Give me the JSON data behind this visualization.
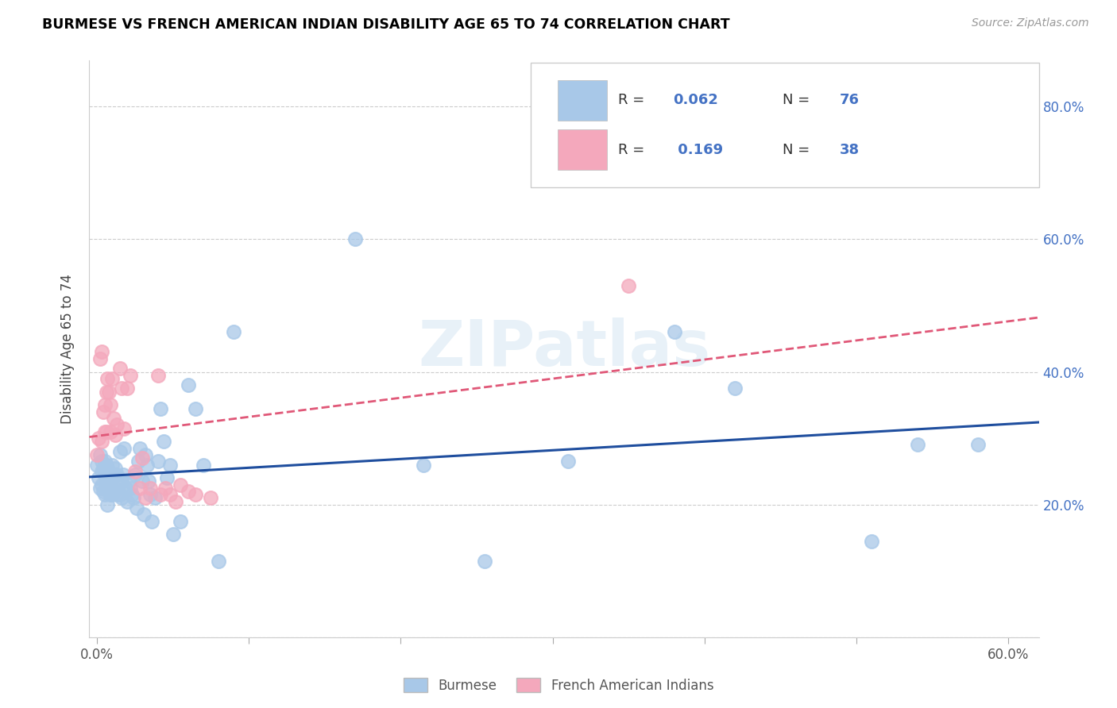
{
  "title": "BURMESE VS FRENCH AMERICAN INDIAN DISABILITY AGE 65 TO 74 CORRELATION CHART",
  "source": "Source: ZipAtlas.com",
  "ylabel": "Disability Age 65 to 74",
  "xlim": [
    -0.005,
    0.62
  ],
  "ylim": [
    0.0,
    0.87
  ],
  "xticks": [
    0.0,
    0.1,
    0.2,
    0.3,
    0.4,
    0.5,
    0.6
  ],
  "xticklabels": [
    "0.0%",
    "",
    "",
    "",
    "",
    "",
    "60.0%"
  ],
  "yticks": [
    0.0,
    0.2,
    0.4,
    0.6,
    0.8
  ],
  "yticklabels_right": [
    "",
    "20.0%",
    "40.0%",
    "60.0%",
    "80.0%"
  ],
  "burmese_R": 0.062,
  "burmese_N": 76,
  "french_R": 0.169,
  "french_N": 38,
  "burmese_color": "#a8c8e8",
  "french_color": "#f4a8bc",
  "burmese_line_color": "#1f4e9e",
  "french_line_color": "#e05878",
  "watermark": "ZIPatlas",
  "legend_labels": [
    "Burmese",
    "French American Indians"
  ],
  "burmese_x": [
    0.0,
    0.001,
    0.002,
    0.002,
    0.003,
    0.003,
    0.003,
    0.004,
    0.004,
    0.005,
    0.005,
    0.005,
    0.006,
    0.006,
    0.007,
    0.007,
    0.007,
    0.008,
    0.008,
    0.009,
    0.009,
    0.01,
    0.01,
    0.01,
    0.011,
    0.011,
    0.012,
    0.012,
    0.013,
    0.013,
    0.014,
    0.015,
    0.015,
    0.016,
    0.016,
    0.017,
    0.018,
    0.019,
    0.02,
    0.021,
    0.022,
    0.023,
    0.024,
    0.025,
    0.026,
    0.027,
    0.028,
    0.03,
    0.031,
    0.032,
    0.033,
    0.034,
    0.035,
    0.036,
    0.038,
    0.04,
    0.042,
    0.044,
    0.046,
    0.048,
    0.05,
    0.055,
    0.06,
    0.065,
    0.07,
    0.08,
    0.09,
    0.17,
    0.215,
    0.255,
    0.31,
    0.38,
    0.42,
    0.51,
    0.54,
    0.58
  ],
  "burmese_y": [
    0.26,
    0.24,
    0.275,
    0.225,
    0.25,
    0.265,
    0.23,
    0.255,
    0.22,
    0.265,
    0.245,
    0.215,
    0.26,
    0.235,
    0.255,
    0.225,
    0.2,
    0.25,
    0.22,
    0.245,
    0.215,
    0.26,
    0.24,
    0.215,
    0.245,
    0.22,
    0.255,
    0.225,
    0.245,
    0.215,
    0.23,
    0.215,
    0.28,
    0.235,
    0.21,
    0.245,
    0.285,
    0.225,
    0.205,
    0.235,
    0.225,
    0.215,
    0.21,
    0.245,
    0.195,
    0.265,
    0.285,
    0.235,
    0.185,
    0.275,
    0.26,
    0.235,
    0.215,
    0.175,
    0.21,
    0.265,
    0.345,
    0.295,
    0.24,
    0.26,
    0.155,
    0.175,
    0.38,
    0.345,
    0.26,
    0.115,
    0.46,
    0.6,
    0.26,
    0.115,
    0.265,
    0.46,
    0.375,
    0.145,
    0.29,
    0.29
  ],
  "french_x": [
    0.0,
    0.001,
    0.002,
    0.003,
    0.003,
    0.004,
    0.005,
    0.005,
    0.006,
    0.006,
    0.007,
    0.008,
    0.009,
    0.009,
    0.01,
    0.011,
    0.012,
    0.013,
    0.015,
    0.016,
    0.018,
    0.02,
    0.022,
    0.025,
    0.028,
    0.03,
    0.032,
    0.035,
    0.04,
    0.042,
    0.045,
    0.048,
    0.052,
    0.055,
    0.06,
    0.065,
    0.075,
    0.35
  ],
  "french_y": [
    0.275,
    0.3,
    0.42,
    0.43,
    0.295,
    0.34,
    0.35,
    0.31,
    0.37,
    0.31,
    0.39,
    0.37,
    0.31,
    0.35,
    0.39,
    0.33,
    0.305,
    0.32,
    0.405,
    0.375,
    0.315,
    0.375,
    0.395,
    0.25,
    0.225,
    0.27,
    0.21,
    0.225,
    0.395,
    0.215,
    0.225,
    0.215,
    0.205,
    0.23,
    0.22,
    0.215,
    0.21,
    0.53
  ]
}
